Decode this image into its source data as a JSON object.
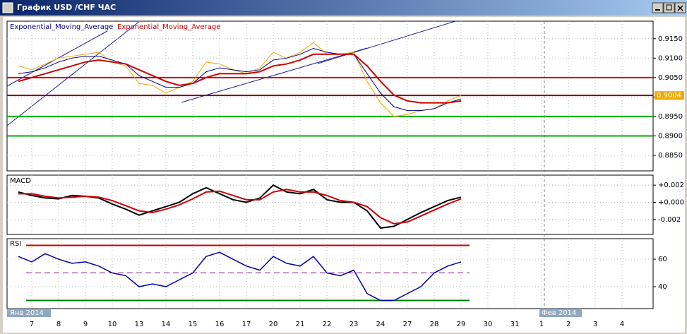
{
  "window_title": "График USD /CHF ЧАС",
  "period_labels": [
    "Янв 2014",
    "Фев 2014"
  ],
  "chart_data": [
    {
      "type": "line",
      "categories": [
        null,
        "7",
        null,
        "8",
        null,
        "9",
        null,
        "10",
        null,
        "13",
        null,
        "14",
        null,
        "15",
        null,
        "16",
        null,
        "17",
        null,
        "20",
        null,
        "21",
        null,
        "22",
        null,
        "23",
        null,
        "24",
        null,
        "27",
        null,
        "28",
        null,
        "29",
        null,
        "30",
        null,
        "31",
        null,
        "1",
        null,
        "2",
        null,
        "3",
        null,
        "4"
      ],
      "values": [
        0.908,
        0.907,
        0.9085,
        0.91,
        0.9105,
        0.911,
        0.9115,
        0.909,
        0.908,
        0.9035,
        0.903,
        0.901,
        0.9025,
        0.904,
        0.909,
        0.9085,
        0.907,
        0.906,
        0.9075,
        0.9115,
        0.91,
        0.9115,
        0.914,
        0.911,
        0.911,
        0.9115,
        0.904,
        0.8985,
        0.895,
        0.8955,
        0.8965,
        0.897,
        0.899,
        0.9004,
        null,
        null,
        null,
        null,
        null,
        null,
        null,
        null,
        null,
        null,
        null,
        null
      ],
      "color": "#f0a800",
      "series": [
        {
          "name": "Exponential_Moving_Average",
          "color": "#000080",
          "values": [
            0.906,
            0.9065,
            0.9075,
            0.909,
            0.91,
            0.9105,
            0.9105,
            0.9095,
            0.9085,
            0.9055,
            0.904,
            0.9025,
            0.9025,
            0.9035,
            0.9065,
            0.9075,
            0.907,
            0.9065,
            0.907,
            0.9095,
            0.91,
            0.911,
            0.9125,
            0.9115,
            0.911,
            0.911,
            0.906,
            0.901,
            0.8975,
            0.8965,
            0.8965,
            0.897,
            0.8985,
            0.8995,
            null,
            null,
            null,
            null,
            null,
            null,
            null,
            null,
            null,
            null,
            null,
            null
          ]
        },
        {
          "name": "Exponential_Moving_Average",
          "color": "#cc0000",
          "values": [
            0.904,
            0.905,
            0.906,
            0.907,
            0.908,
            0.909,
            0.9095,
            0.909,
            0.9085,
            0.907,
            0.9055,
            0.904,
            0.903,
            0.9035,
            0.905,
            0.906,
            0.906,
            0.906,
            0.9065,
            0.908,
            0.9085,
            0.9095,
            0.911,
            0.911,
            0.911,
            0.911,
            0.908,
            0.904,
            0.9005,
            0.899,
            0.8985,
            0.8985,
            0.8985,
            0.899,
            null,
            null,
            null,
            null,
            null,
            null,
            null,
            null,
            null,
            null,
            null,
            null
          ]
        }
      ],
      "ylim": [
        0.881,
        0.9195
      ],
      "yticks": [
        {
          "value": 0.915,
          "label": "0.9150"
        },
        {
          "value": 0.91,
          "label": "0.9100"
        },
        {
          "value": 0.905,
          "label": "0.9050"
        },
        {
          "value": 0.9,
          "label": "0.9000"
        },
        {
          "value": 0.895,
          "label": "0.8950"
        },
        {
          "value": 0.89,
          "label": "0.8900"
        },
        {
          "value": 0.885,
          "label": "0.8850"
        }
      ],
      "levels": [
        {
          "value": 0.905,
          "color": "#cc0000"
        },
        {
          "value": 0.895,
          "color": "#00b000"
        },
        {
          "value": 0.89,
          "color": "#00b000"
        }
      ],
      "last_value": 0.9004,
      "last_color": "#f0a800",
      "last_line_color": "#800000",
      "grid": true
    },
    {
      "type": "line",
      "title": "MACD",
      "series": [
        {
          "color": "#000000",
          "values": [
            0.0012,
            0.0008,
            0.0005,
            0.0004,
            0.0008,
            0.0007,
            0.0005,
            -0.0002,
            -0.0008,
            -0.0015,
            -0.001,
            -0.0005,
            0,
            0.001,
            0.0017,
            0.001,
            0.0003,
            0,
            0.0005,
            0.002,
            0.0012,
            0.001,
            0.0015,
            0.0003,
            0,
            0,
            -0.001,
            -0.003,
            -0.0028,
            -0.002,
            -0.0012,
            -0.0005,
            0.0002,
            0.0006,
            null,
            null,
            null,
            null,
            null,
            null,
            null,
            null,
            null,
            null,
            null,
            null
          ]
        },
        {
          "color": "#cc0000",
          "values": [
            0.001,
            0.001,
            0.0007,
            0.0005,
            0.0006,
            0.0007,
            0.0006,
            0.0002,
            -0.0004,
            -0.001,
            -0.0012,
            -0.0008,
            -0.0003,
            0.0004,
            0.0012,
            0.0013,
            0.0008,
            0.0003,
            0.0003,
            0.0012,
            0.0015,
            0.0012,
            0.0012,
            0.0008,
            0.0002,
            0,
            -0.0005,
            -0.0018,
            -0.0025,
            -0.0023,
            -0.0016,
            -0.0009,
            -0.0002,
            0.0004,
            null,
            null,
            null,
            null,
            null,
            null,
            null,
            null,
            null,
            null,
            null,
            null
          ]
        }
      ],
      "ylim": [
        -0.00375,
        0.00317
      ],
      "yticks": [
        {
          "value": 0.002,
          "label": "+0.002"
        },
        {
          "value": 0,
          "label": "+0.000"
        },
        {
          "value": -0.002,
          "label": "-0.002"
        }
      ],
      "grid": true
    },
    {
      "type": "line",
      "title": "RSI",
      "values": [
        62,
        58,
        64,
        60,
        57,
        58,
        55,
        50,
        48,
        40,
        42,
        40,
        45,
        50,
        62,
        65,
        60,
        55,
        52,
        62,
        57,
        55,
        62,
        50,
        48,
        52,
        35,
        30,
        30,
        35,
        40,
        50,
        55,
        58,
        null,
        null,
        null,
        null,
        null,
        null,
        null,
        null,
        null,
        null,
        null,
        null
      ],
      "color": "#0000aa",
      "ylim": [
        24.1,
        74.9
      ],
      "yticks": [
        60,
        40
      ],
      "levels": [
        {
          "value": 70,
          "color": "#cc0000"
        },
        {
          "value": 50,
          "color": "#800080",
          "dashed": true
        },
        {
          "value": 30,
          "color": "#008000"
        }
      ],
      "grid": true
    }
  ]
}
